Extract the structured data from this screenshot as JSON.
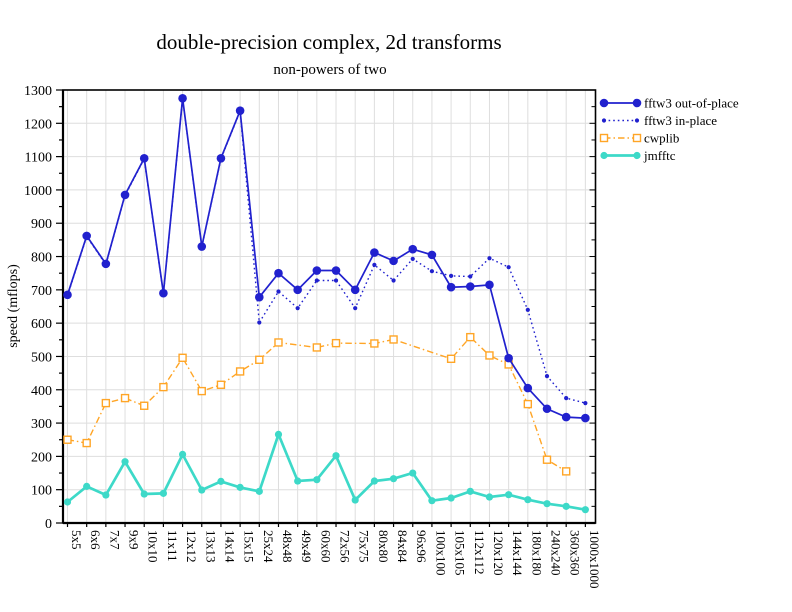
{
  "title": "double-precision complex, 2d transforms",
  "subtitle": "non-powers of two",
  "chart_data": {
    "type": "line",
    "title": "double-precision complex, 2d transforms",
    "subtitle": "non-powers of two",
    "xlabel": "",
    "ylabel": "speed (mflops)",
    "ylim": [
      0,
      1300
    ],
    "ytick_step": 100,
    "grid": true,
    "legend_position": "right-top-outside",
    "categories": [
      "5x5",
      "6x6",
      "7x7",
      "9x9",
      "10x10",
      "11x11",
      "12x12",
      "13x13",
      "14x14",
      "15x15",
      "25x24",
      "48x48",
      "49x49",
      "60x60",
      "72x56",
      "75x75",
      "80x80",
      "84x84",
      "96x96",
      "100x100",
      "105x105",
      "112x112",
      "120x120",
      "144x144",
      "180x180",
      "240x240",
      "360x360",
      "1000x1000"
    ],
    "series": [
      {
        "name": "fftw3 out-of-place",
        "color": "#2121ce",
        "line": "solid",
        "marker": "circle-large",
        "values": [
          685,
          862,
          778,
          985,
          1095,
          690,
          1275,
          830,
          1095,
          1238,
          678,
          750,
          700,
          758,
          758,
          700,
          812,
          787,
          822,
          805,
          708,
          710,
          715,
          495,
          405,
          343,
          318,
          315
        ]
      },
      {
        "name": "fftw3 in-place",
        "color": "#2121ce",
        "line": "dotted",
        "marker": "circle-small",
        "values": [
          683,
          860,
          776,
          983,
          1093,
          688,
          1273,
          828,
          1093,
          1236,
          602,
          695,
          645,
          728,
          728,
          645,
          775,
          728,
          793,
          756,
          742,
          740,
          795,
          768,
          640,
          441,
          375,
          360
        ]
      },
      {
        "name": "cwplib",
        "color": "#ffa526",
        "line": "dashdot",
        "marker": "square-open",
        "values": [
          250,
          240,
          360,
          375,
          352,
          408,
          496,
          396,
          415,
          455,
          490,
          542,
          null,
          527,
          540,
          null,
          539,
          551,
          null,
          null,
          493,
          558,
          503,
          476,
          357,
          190,
          155,
          null
        ]
      },
      {
        "name": "jmfftc",
        "color": "#3dd9c8",
        "line": "solid-thick",
        "marker": "circle-medium",
        "values": [
          63,
          110,
          84,
          184,
          87,
          89,
          206,
          99,
          125,
          107,
          95,
          266,
          126,
          130,
          202,
          69,
          126,
          133,
          150,
          67,
          75,
          95,
          78,
          85,
          70,
          58,
          50,
          40
        ]
      }
    ]
  },
  "colors": {
    "fftw3": "#2121ce",
    "cwplib": "#ffa526",
    "jmfftc": "#3dd9c8",
    "gridline": "#dedede",
    "frame": "#000000"
  }
}
